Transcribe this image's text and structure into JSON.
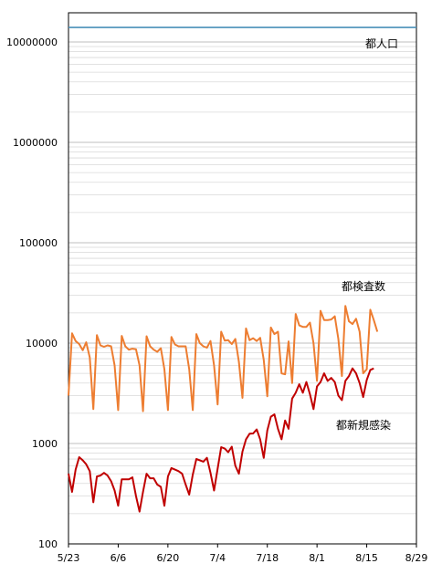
{
  "chart_data": {
    "type": "line",
    "title": "",
    "xlabel": "",
    "ylabel": "",
    "y_scale": "log",
    "ylim": [
      100,
      20000000
    ],
    "xlim": [
      "2020-05-23",
      "2020-08-29"
    ],
    "grid": {
      "y_minor": true,
      "x": false
    },
    "x_ticks": [
      "5/23",
      "6/6",
      "6/20",
      "7/4",
      "7/18",
      "8/1",
      "8/15",
      "8/29"
    ],
    "y_ticks": [
      100,
      1000,
      10000,
      100000,
      1000000,
      10000000
    ],
    "y_tick_labels": [
      "100",
      "1000",
      "10000",
      "100000",
      "1000000",
      "10000000"
    ],
    "x_start": "2020-05-23",
    "series": [
      {
        "name": "都人口",
        "color": "#4a90b8",
        "values": [
          13950000,
          13950000
        ]
      },
      {
        "name": "都検査数",
        "color": "#ed7d31",
        "values": [
          3000,
          12500,
          10500,
          9800,
          8500,
          10200,
          7200,
          2200,
          12000,
          9500,
          9200,
          9500,
          9300,
          6000,
          2150,
          11800,
          9300,
          8600,
          8800,
          8700,
          6000,
          2100,
          11700,
          9300,
          8600,
          8200,
          8900,
          5500,
          2150,
          11500,
          9700,
          9300,
          9300,
          9300,
          5500,
          2150,
          12300,
          10000,
          9300,
          9000,
          10500,
          6000,
          2450,
          13000,
          10600,
          10700,
          9800,
          11000,
          6500,
          2850,
          14000,
          10700,
          11200,
          10500,
          11300,
          6800,
          2950,
          14300,
          12300,
          13000,
          5000,
          4900,
          10400,
          4000,
          19500,
          15000,
          14500,
          14500,
          16000,
          10000,
          4200,
          21000,
          17000,
          17000,
          17200,
          18500,
          11000,
          4700,
          23500,
          16500,
          15500,
          17500,
          13000,
          5000,
          5500,
          21500,
          17000,
          13000
        ]
      },
      {
        "name": "都新規感染",
        "color": "#c00000",
        "values": [
          500,
          330,
          550,
          730,
          680,
          620,
          530,
          260,
          470,
          480,
          510,
          480,
          420,
          340,
          240,
          440,
          440,
          440,
          460,
          300,
          210,
          330,
          500,
          450,
          450,
          390,
          370,
          240,
          470,
          570,
          550,
          530,
          500,
          390,
          310,
          490,
          700,
          680,
          660,
          720,
          510,
          340,
          560,
          920,
          890,
          820,
          930,
          600,
          500,
          830,
          1100,
          1250,
          1260,
          1380,
          1100,
          720,
          1350,
          1850,
          1950,
          1400,
          1100,
          1700,
          1400,
          2800,
          3200,
          3900,
          3200,
          4100,
          3100,
          2200,
          3700,
          4100,
          5000,
          4200,
          4500,
          4100,
          3000,
          2700,
          4200,
          4700,
          5600,
          5000,
          4000,
          2900,
          4300,
          5400,
          5600
        ]
      }
    ],
    "annotations": [
      {
        "text": "都人口",
        "series": "都人口"
      },
      {
        "text": "都検査数",
        "series": "都検査数"
      },
      {
        "text": "都新規感染",
        "series": "都新規感染"
      }
    ]
  }
}
